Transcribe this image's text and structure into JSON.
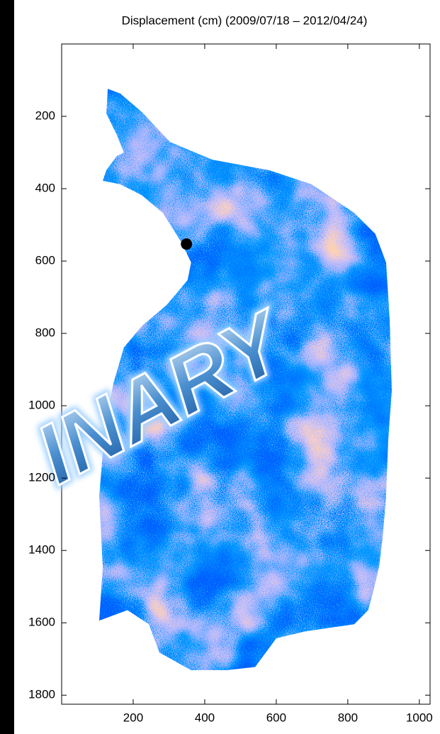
{
  "chart_data": {
    "type": "map",
    "title": "Displacement (cm) (2009/07/18 – 2012/04/24)",
    "annotation": "INARY",
    "xlim": [
      0,
      1030
    ],
    "xticks": [
      200,
      400,
      600,
      800,
      1000
    ],
    "ylim": [
      0,
      1825
    ],
    "yticks": [
      200,
      400,
      600,
      800,
      1000,
      1200,
      1400,
      1600,
      1800
    ],
    "y_reversed": true,
    "region": {
      "x": [
        129,
        164,
        224,
        303,
        422,
        580,
        699,
        818,
        877,
        907,
        917,
        923,
        913,
        907,
        897,
        887,
        873,
        857,
        818,
        679,
        600,
        541,
        461,
        362,
        273,
        244,
        184,
        105,
        115,
        105,
        121,
        145,
        174,
        224,
        293,
        352,
        362,
        333,
        283,
        224,
        164,
        115,
        125,
        154,
        174,
        154,
        125
      ],
      "y": [
        124,
        137,
        188,
        271,
        320,
        349,
        388,
        467,
        525,
        604,
        761,
        957,
        1094,
        1251,
        1369,
        1447,
        1506,
        1565,
        1604,
        1624,
        1643,
        1722,
        1731,
        1731,
        1682,
        1604,
        1565,
        1594,
        1447,
        1251,
        1055,
        937,
        839,
        780,
        722,
        653,
        604,
        545,
        467,
        418,
        388,
        378,
        349,
        310,
        300,
        251,
        192
      ]
    },
    "marker": {
      "x": 349,
      "y": 553,
      "color": "#000000"
    }
  }
}
